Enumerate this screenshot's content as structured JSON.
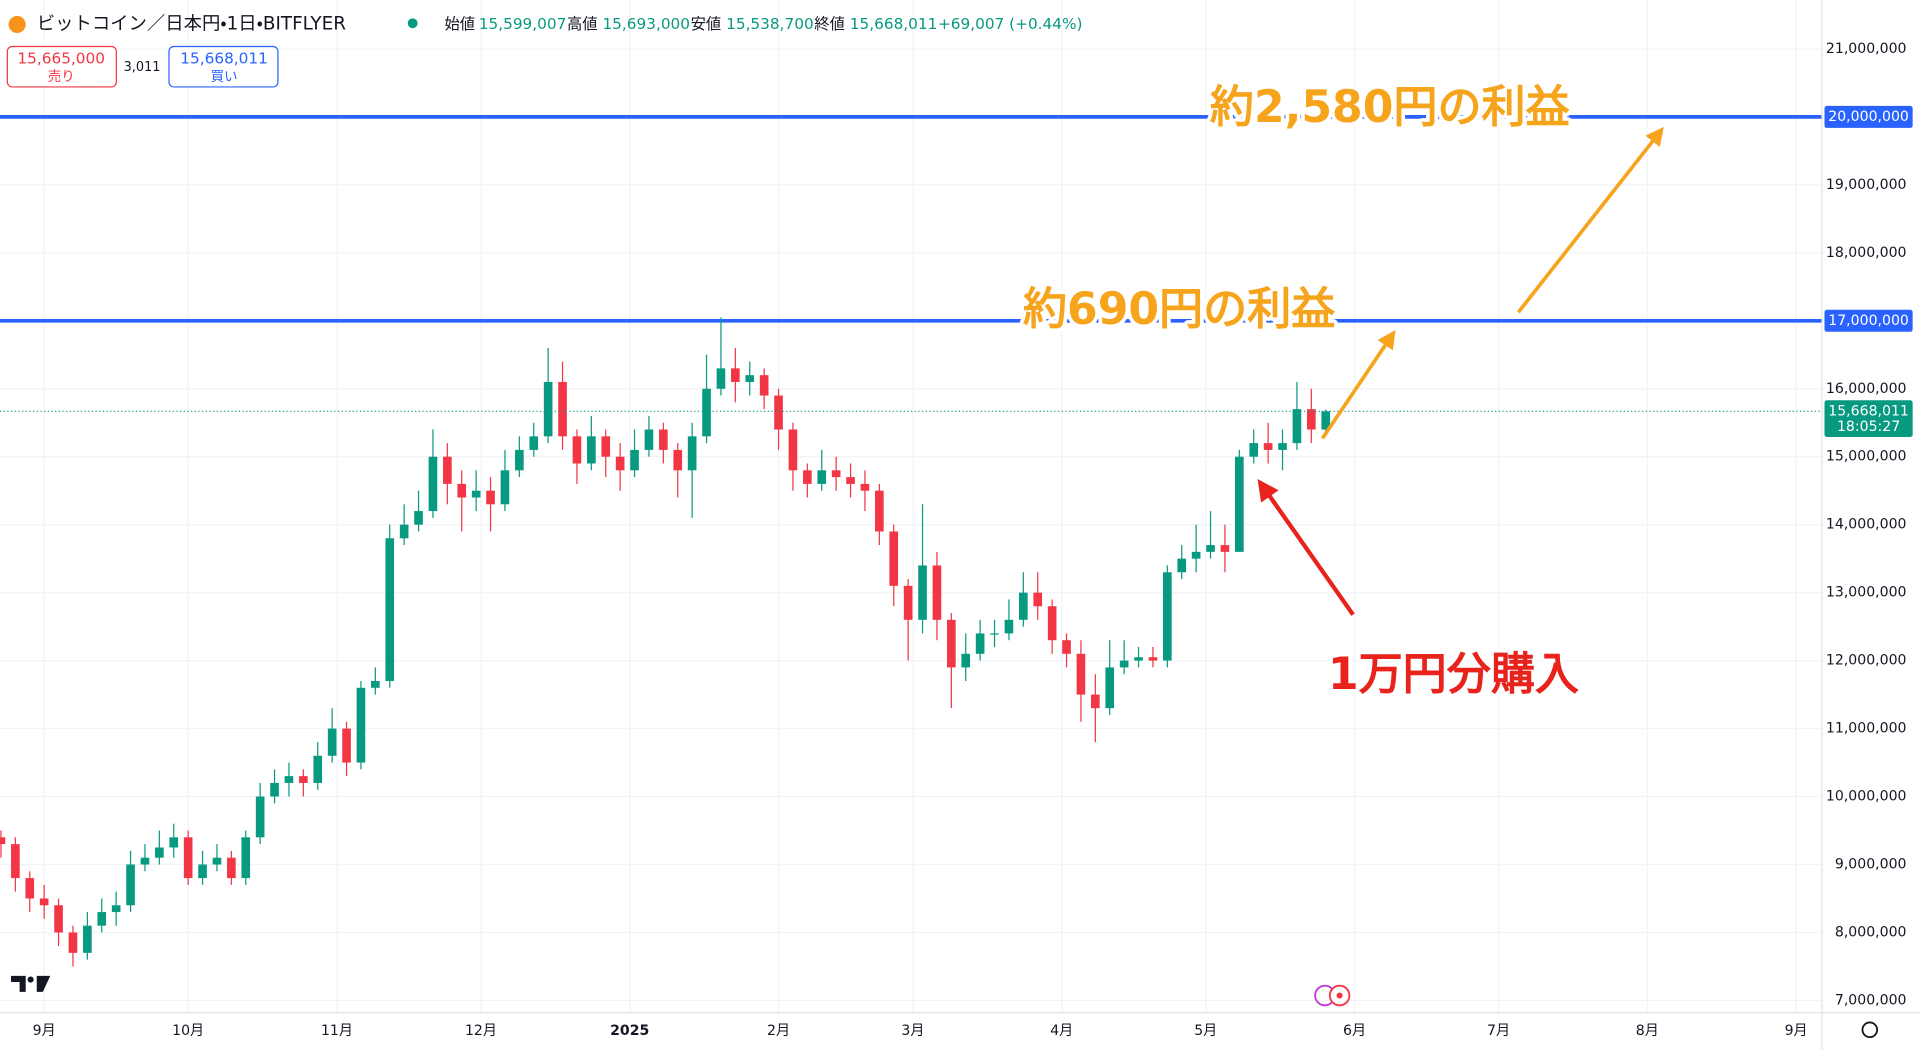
{
  "header": {
    "symbol": "ビットコイン／日本円・1日・BITFLYER",
    "ohlc": [
      {
        "label": "始値",
        "value": "15,599,007"
      },
      {
        "label": "高値",
        "value": "15,693,000"
      },
      {
        "label": "安値",
        "value": "15,538,700"
      },
      {
        "label": "終値",
        "value": "15,668,011"
      }
    ],
    "change": "+69,007 (+0.44%)"
  },
  "trade": {
    "sell_price": "15,665,000",
    "sell_label": "売り",
    "spread": "3,011",
    "buy_price": "15,668,011",
    "buy_label": "買い"
  },
  "chart_data": {
    "type": "candlestick",
    "x": [
      -9,
      -6,
      -3,
      0,
      3,
      6,
      9,
      12,
      15,
      18,
      21,
      24,
      27,
      30,
      33,
      36,
      39,
      42,
      45,
      48,
      51,
      54,
      57,
      60,
      63,
      66,
      69,
      72,
      75,
      78,
      81,
      84,
      87,
      90,
      93,
      96,
      99,
      102,
      105,
      108,
      111,
      114,
      117,
      120,
      123,
      126,
      129,
      132,
      135,
      138,
      141,
      144,
      147,
      150,
      153,
      156,
      159,
      162,
      165,
      168,
      171,
      174,
      177,
      180,
      183,
      186,
      189,
      192,
      195,
      198,
      201,
      204,
      207,
      210,
      213,
      216,
      219,
      222,
      225,
      228,
      231,
      234,
      237,
      240,
      243,
      246,
      249,
      252,
      255,
      258,
      261,
      264,
      267
    ],
    "open": [
      9400000,
      9300000,
      8800000,
      8500000,
      8400000,
      8000000,
      7700000,
      8100000,
      8300000,
      8400000,
      9000000,
      9100000,
      9250000,
      9400000,
      8800000,
      9000000,
      9100000,
      8800000,
      9400000,
      10000000,
      10200000,
      10300000,
      10200000,
      10600000,
      11000000,
      10500000,
      11600000,
      11700000,
      13800000,
      14000000,
      14200000,
      15000000,
      14600000,
      14400000,
      14500000,
      14300000,
      14800000,
      15100000,
      15300000,
      16100000,
      15300000,
      14900000,
      15300000,
      15000000,
      14800000,
      15100000,
      15400000,
      15100000,
      14800000,
      15300000,
      16000000,
      16300000,
      16100000,
      16200000,
      15900000,
      15400000,
      14800000,
      14600000,
      14800000,
      14700000,
      14600000,
      14500000,
      13900000,
      13100000,
      12600000,
      13400000,
      12600000,
      11900000,
      12100000,
      12400000,
      12400000,
      12600000,
      13000000,
      12800000,
      12300000,
      12100000,
      11500000,
      11300000,
      11900000,
      12000000,
      12050000,
      12000000,
      13300000,
      13500000,
      13600000,
      13700000,
      13600000,
      15000000,
      15200000,
      15100000,
      15200000,
      15700000,
      15400000
    ],
    "high": [
      9500000,
      9400000,
      8900000,
      8700000,
      8500000,
      8100000,
      8300000,
      8500000,
      8600000,
      9200000,
      9300000,
      9500000,
      9600000,
      9500000,
      9200000,
      9300000,
      9200000,
      9500000,
      10200000,
      10400000,
      10500000,
      10400000,
      10800000,
      11300000,
      11100000,
      11700000,
      11900000,
      14000000,
      14300000,
      14500000,
      15400000,
      15200000,
      14800000,
      14800000,
      14700000,
      15100000,
      15300000,
      15500000,
      16600000,
      16400000,
      15400000,
      15600000,
      15400000,
      15200000,
      15400000,
      15600000,
      15500000,
      15200000,
      15500000,
      16500000,
      17050000,
      16600000,
      16400000,
      16300000,
      16000000,
      15500000,
      14900000,
      15100000,
      15000000,
      14900000,
      14800000,
      14600000,
      14000000,
      13200000,
      14300000,
      13600000,
      12700000,
      12400000,
      12600000,
      12600000,
      12900000,
      13300000,
      13300000,
      12900000,
      12400000,
      12300000,
      11800000,
      12300000,
      12300000,
      12200000,
      12200000,
      13400000,
      13700000,
      14000000,
      14200000,
      14000000,
      15100000,
      15400000,
      15500000,
      15400000,
      16100000,
      16000000,
      15693000
    ],
    "low": [
      9100000,
      8600000,
      8300000,
      8200000,
      7800000,
      7500000,
      7600000,
      8000000,
      8100000,
      8300000,
      8900000,
      9000000,
      9100000,
      8700000,
      8700000,
      8900000,
      8700000,
      8700000,
      9300000,
      9900000,
      10000000,
      10000000,
      10100000,
      10500000,
      10300000,
      10400000,
      11500000,
      11600000,
      13700000,
      13900000,
      14100000,
      14300000,
      13900000,
      14200000,
      13900000,
      14200000,
      14700000,
      15000000,
      15200000,
      15100000,
      14600000,
      14800000,
      14700000,
      14500000,
      14700000,
      15000000,
      14900000,
      14400000,
      14100000,
      15200000,
      15900000,
      15800000,
      15900000,
      15700000,
      15100000,
      14500000,
      14400000,
      14500000,
      14500000,
      14400000,
      14200000,
      13700000,
      12800000,
      12000000,
      12400000,
      12300000,
      11300000,
      11700000,
      12000000,
      12200000,
      12300000,
      12500000,
      12600000,
      12100000,
      11900000,
      11100000,
      10800000,
      11200000,
      11800000,
      11900000,
      11900000,
      11900000,
      13200000,
      13300000,
      13500000,
      13300000,
      13600000,
      14900000,
      14900000,
      14800000,
      15100000,
      15200000,
      15300000
    ],
    "close": [
      9300000,
      8800000,
      8500000,
      8400000,
      8000000,
      7700000,
      8100000,
      8300000,
      8400000,
      9000000,
      9100000,
      9250000,
      9400000,
      8800000,
      9000000,
      9100000,
      8800000,
      9400000,
      10000000,
      10200000,
      10300000,
      10200000,
      10600000,
      11000000,
      10500000,
      11600000,
      11700000,
      13800000,
      14000000,
      14200000,
      15000000,
      14600000,
      14400000,
      14500000,
      14300000,
      14800000,
      15100000,
      15300000,
      16100000,
      15300000,
      14900000,
      15300000,
      15000000,
      14800000,
      15100000,
      15400000,
      15100000,
      14800000,
      15300000,
      16000000,
      16300000,
      16100000,
      16200000,
      15900000,
      15400000,
      14800000,
      14600000,
      14800000,
      14700000,
      14600000,
      14500000,
      13900000,
      13100000,
      12600000,
      13400000,
      12600000,
      11900000,
      12100000,
      12400000,
      12400000,
      12600000,
      13000000,
      12800000,
      12300000,
      12100000,
      11500000,
      11300000,
      11900000,
      12000000,
      12050000,
      12000000,
      13300000,
      13500000,
      13600000,
      13700000,
      13600000,
      15000000,
      15200000,
      15100000,
      15200000,
      15700000,
      15400000,
      15668011
    ],
    "up_color": "#089981",
    "down_color": "#f23645",
    "xlim": [
      -9.2,
      370.4
    ],
    "xticks": [
      {
        "value": 0,
        "label": "9月"
      },
      {
        "value": 30,
        "label": "10月"
      },
      {
        "value": 61,
        "label": "11月"
      },
      {
        "value": 91,
        "label": "12月"
      },
      {
        "value": 122,
        "label": "2025"
      },
      {
        "value": 153,
        "label": "2月"
      },
      {
        "value": 181,
        "label": "3月"
      },
      {
        "value": 212,
        "label": "4月"
      },
      {
        "value": 242,
        "label": "5月"
      },
      {
        "value": 273,
        "label": "6月"
      },
      {
        "value": 303,
        "label": "7月"
      },
      {
        "value": 334,
        "label": "8月"
      },
      {
        "value": 365,
        "label": "9月"
      }
    ],
    "ylim": [
      6820000,
      21720000
    ],
    "yticks": [
      {
        "value": 7000000,
        "label": "7,000,000"
      },
      {
        "value": 8000000,
        "label": "8,000,000"
      },
      {
        "value": 9000000,
        "label": "9,000,000"
      },
      {
        "value": 10000000,
        "label": "10,000,000"
      },
      {
        "value": 11000000,
        "label": "11,000,000"
      },
      {
        "value": 12000000,
        "label": "12,000,000"
      },
      {
        "value": 13000000,
        "label": "13,000,000"
      },
      {
        "value": 14000000,
        "label": "14,000,000"
      },
      {
        "value": 15000000,
        "label": "15,000,000"
      },
      {
        "value": 16000000,
        "label": "16,000,000"
      },
      {
        "value": 17000000,
        "label": "17,000,000"
      },
      {
        "value": 18000000,
        "label": "18,000,000"
      },
      {
        "value": 19000000,
        "label": "19,000,000"
      },
      {
        "value": 20000000,
        "label": "20,000,000"
      },
      {
        "value": 21000000,
        "label": "21,000,000"
      }
    ],
    "grid": true,
    "hlines": [
      {
        "value": 17000000,
        "label": "17,000,000",
        "color": "#2962ff"
      },
      {
        "value": 20000000,
        "label": "20,000,000",
        "color": "#2962ff"
      }
    ],
    "last_price": {
      "price": "15,668,011",
      "countdown": "18:05:27",
      "color": "#089981"
    },
    "annotations": [
      {
        "text": "約2,580円の利益",
        "color": "#f7a41d"
      },
      {
        "text": "約690円の利益",
        "color": "#f7a41d"
      },
      {
        "text": "1万円分購入",
        "color": "#e8231c"
      }
    ]
  }
}
